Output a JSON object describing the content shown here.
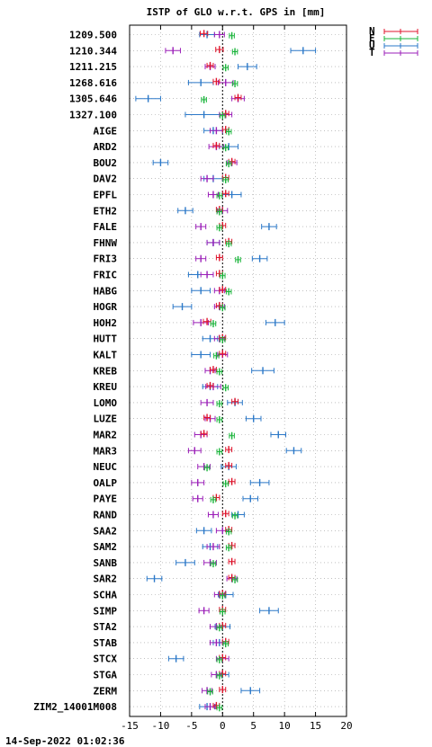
{
  "chart_data": {
    "type": "scatter",
    "title": "ISTP of GLO w.r.t. GPS in [mm]",
    "timestamp": "14-Sep-2022 01:02:36",
    "xlim": [
      -15,
      20
    ],
    "x_ticks": [
      -15,
      -10,
      -5,
      0,
      5,
      10,
      15,
      20
    ],
    "grid": true,
    "legend_position": "top-right",
    "components": [
      {
        "name": "N",
        "color": "#e0142c"
      },
      {
        "name": "E",
        "color": "#19b53a"
      },
      {
        "name": "U",
        "color": "#2b78c8"
      },
      {
        "name": "T",
        "color": "#9b1fb8"
      }
    ],
    "stations": [
      {
        "label": "1209.500",
        "N": -3.0,
        "E": 1.5,
        "U": -2.5,
        "T": -0.5,
        "errN": 0.6,
        "errE": 0.4,
        "errU": 1.2,
        "errT": 0.8
      },
      {
        "label": "1210.344",
        "N": -0.5,
        "E": 2.0,
        "U": 13.0,
        "T": -8.0,
        "errN": 0.6,
        "errE": 0.4,
        "errU": 2.0,
        "errT": 1.2
      },
      {
        "label": "1211.215",
        "N": -2.0,
        "E": 0.5,
        "U": 4.0,
        "T": -2.0,
        "errN": 0.5,
        "errE": 0.4,
        "errU": 1.5,
        "errT": 0.8
      },
      {
        "label": "1268.616",
        "N": -1.0,
        "E": 2.0,
        "U": -3.5,
        "T": 0.5,
        "errN": 0.5,
        "errE": 0.4,
        "errU": 2.0,
        "errT": 1.2
      },
      {
        "label": "1305.646",
        "N": 2.5,
        "E": -3.0,
        "U": -12.0,
        "T": 2.5,
        "errN": 0.5,
        "errE": 0.4,
        "errU": 2.0,
        "errT": 1.0
      },
      {
        "label": "1327.100",
        "N": 0.5,
        "E": 0.0,
        "U": -3.0,
        "T": 0.5,
        "errN": 0.5,
        "errE": 0.4,
        "errU": 3.0,
        "errT": 1.0
      },
      {
        "label": "AIGE",
        "N": 0.5,
        "E": 1.0,
        "U": -1.5,
        "T": -1.0,
        "errN": 0.5,
        "errE": 0.4,
        "errU": 1.5,
        "errT": 1.0
      },
      {
        "label": "ARD2",
        "N": -1.0,
        "E": 0.5,
        "U": 1.0,
        "T": -1.0,
        "errN": 0.5,
        "errE": 0.4,
        "errU": 1.5,
        "errT": 1.2
      },
      {
        "label": "BOU2",
        "N": 1.5,
        "E": 1.0,
        "U": -10.0,
        "T": 1.5,
        "errN": 0.5,
        "errE": 0.4,
        "errU": 1.2,
        "errT": 0.8
      },
      {
        "label": "DAV2",
        "N": 0.5,
        "E": 0.5,
        "U": -1.5,
        "T": -2.5,
        "errN": 0.5,
        "errE": 0.4,
        "errU": 1.5,
        "errT": 1.0
      },
      {
        "label": "EPFL",
        "N": 0.5,
        "E": -0.5,
        "U": 1.5,
        "T": -1.5,
        "errN": 0.5,
        "errE": 0.4,
        "errU": 1.5,
        "errT": 0.8
      },
      {
        "label": "ETH2",
        "N": -0.5,
        "E": -0.5,
        "U": -6.0,
        "T": 0.0,
        "errN": 0.5,
        "errE": 0.4,
        "errU": 1.2,
        "errT": 0.8
      },
      {
        "label": "FALE",
        "N": 0.0,
        "E": -0.5,
        "U": 7.5,
        "T": -3.5,
        "errN": 0.5,
        "errE": 0.4,
        "errU": 1.2,
        "errT": 0.8
      },
      {
        "label": "FHNW",
        "N": 1.0,
        "E": 1.0,
        "U": -1.5,
        "T": -1.5,
        "errN": 0.5,
        "errE": 0.4,
        "errU": 1.0,
        "errT": 1.0
      },
      {
        "label": "FRI3",
        "N": -0.5,
        "E": 2.5,
        "U": 6.0,
        "T": -3.5,
        "errN": 0.5,
        "errE": 0.4,
        "errU": 1.2,
        "errT": 0.8
      },
      {
        "label": "FRIC",
        "N": -0.5,
        "E": 0.0,
        "U": -4.0,
        "T": -2.5,
        "errN": 0.5,
        "errE": 0.4,
        "errU": 1.5,
        "errT": 1.0
      },
      {
        "label": "HABG",
        "N": 0.0,
        "E": 1.0,
        "U": -3.5,
        "T": -0.5,
        "errN": 0.5,
        "errE": 0.4,
        "errU": 1.5,
        "errT": 0.8
      },
      {
        "label": "HOGR",
        "N": -0.5,
        "E": 0.0,
        "U": -6.5,
        "T": -0.5,
        "errN": 0.5,
        "errE": 0.4,
        "errU": 1.5,
        "errT": 0.8
      },
      {
        "label": "HOH2",
        "N": -2.5,
        "E": -1.5,
        "U": 8.5,
        "T": -3.5,
        "errN": 0.6,
        "errE": 0.4,
        "errU": 1.5,
        "errT": 1.2
      },
      {
        "label": "HUTT",
        "N": 0.0,
        "E": 0.0,
        "U": -2.0,
        "T": -0.5,
        "errN": 0.5,
        "errE": 0.4,
        "errU": 1.2,
        "errT": 0.8
      },
      {
        "label": "KALT",
        "N": 0.0,
        "E": -1.0,
        "U": -3.5,
        "T": 0.0,
        "errN": 0.5,
        "errE": 0.4,
        "errU": 1.5,
        "errT": 0.8
      },
      {
        "label": "KREB",
        "N": -1.5,
        "E": -0.5,
        "U": 6.5,
        "T": -2.0,
        "errN": 0.5,
        "errE": 0.4,
        "errU": 1.8,
        "errT": 0.8
      },
      {
        "label": "KREU",
        "N": -2.0,
        "E": 0.5,
        "U": -2.0,
        "T": -1.5,
        "errN": 0.5,
        "errE": 0.4,
        "errU": 1.2,
        "errT": 1.2
      },
      {
        "label": "LOMO",
        "N": 2.0,
        "E": -0.5,
        "U": 2.0,
        "T": -2.5,
        "errN": 0.5,
        "errE": 0.4,
        "errU": 1.2,
        "errT": 1.0
      },
      {
        "label": "LUZE",
        "N": -2.5,
        "E": -0.5,
        "U": 5.0,
        "T": -2.0,
        "errN": 0.5,
        "errE": 0.4,
        "errU": 1.2,
        "errT": 0.8
      },
      {
        "label": "MAR2",
        "N": -3.0,
        "E": 1.5,
        "U": 9.0,
        "T": -3.5,
        "errN": 0.5,
        "errE": 0.4,
        "errU": 1.2,
        "errT": 1.0
      },
      {
        "label": "MAR3",
        "N": 1.0,
        "E": -0.5,
        "U": 11.5,
        "T": -4.5,
        "errN": 0.5,
        "errE": 0.4,
        "errU": 1.2,
        "errT": 1.0
      },
      {
        "label": "NEUC",
        "N": 1.0,
        "E": -2.5,
        "U": 1.0,
        "T": -3.0,
        "errN": 0.5,
        "errE": 0.4,
        "errU": 1.2,
        "errT": 1.0
      },
      {
        "label": "OALP",
        "N": 1.5,
        "E": 0.5,
        "U": 6.0,
        "T": -4.0,
        "errN": 0.5,
        "errE": 0.4,
        "errU": 1.5,
        "errT": 1.0
      },
      {
        "label": "PAYE",
        "N": -1.0,
        "E": -1.5,
        "U": 4.5,
        "T": -4.0,
        "errN": 0.5,
        "errE": 0.4,
        "errU": 1.2,
        "errT": 0.8
      },
      {
        "label": "RAND",
        "N": 0.5,
        "E": 2.0,
        "U": 2.5,
        "T": -1.5,
        "errN": 0.5,
        "errE": 0.4,
        "errU": 1.0,
        "errT": 0.8
      },
      {
        "label": "SAA2",
        "N": 1.0,
        "E": 1.0,
        "U": -3.0,
        "T": 0.0,
        "errN": 0.5,
        "errE": 0.4,
        "errU": 1.2,
        "errT": 1.0
      },
      {
        "label": "SAM2",
        "N": 1.5,
        "E": 1.0,
        "U": -2.0,
        "T": -1.5,
        "errN": 0.5,
        "errE": 0.4,
        "errU": 1.2,
        "errT": 1.0
      },
      {
        "label": "SANB",
        "N": 1.5,
        "E": -1.5,
        "U": -6.0,
        "T": -2.0,
        "errN": 0.5,
        "errE": 0.4,
        "errU": 1.5,
        "errT": 1.0
      },
      {
        "label": "SAR2",
        "N": 1.5,
        "E": 2.0,
        "U": -11.0,
        "T": 1.5,
        "errN": 0.5,
        "errE": 0.4,
        "errU": 1.2,
        "errT": 0.8
      },
      {
        "label": "SCHA",
        "N": 0.0,
        "E": 0.0,
        "U": 0.5,
        "T": -0.5,
        "errN": 0.5,
        "errE": 0.4,
        "errU": 1.2,
        "errT": 0.8
      },
      {
        "label": "SIMP",
        "N": 0.0,
        "E": 0.0,
        "U": 7.5,
        "T": -3.0,
        "errN": 0.5,
        "errE": 0.4,
        "errU": 1.5,
        "errT": 0.8
      },
      {
        "label": "STA2",
        "N": 0.0,
        "E": -0.5,
        "U": 0.0,
        "T": -1.0,
        "errN": 0.5,
        "errE": 0.4,
        "errU": 1.2,
        "errT": 1.0
      },
      {
        "label": "STAB",
        "N": 0.5,
        "E": 0.5,
        "U": -0.5,
        "T": -1.0,
        "errN": 0.5,
        "errE": 0.4,
        "errU": 1.0,
        "errT": 1.0
      },
      {
        "label": "STCX",
        "N": 0.0,
        "E": -0.5,
        "U": -7.5,
        "T": 0.0,
        "errN": 0.5,
        "errE": 0.4,
        "errU": 1.2,
        "errT": 1.0
      },
      {
        "label": "STGA",
        "N": 0.0,
        "E": -0.5,
        "U": 0.0,
        "T": -1.0,
        "errN": 0.5,
        "errE": 0.4,
        "errU": 1.0,
        "errT": 0.8
      },
      {
        "label": "ZERM",
        "N": 0.0,
        "E": -2.0,
        "U": 4.5,
        "T": -2.5,
        "errN": 0.5,
        "errE": 0.4,
        "errU": 1.5,
        "errT": 0.8
      },
      {
        "label": "ZIM2_14001M008",
        "N": -1.0,
        "E": -0.5,
        "U": -2.5,
        "T": -2.0,
        "errN": 0.5,
        "errE": 0.4,
        "errU": 1.2,
        "errT": 0.8
      }
    ]
  }
}
